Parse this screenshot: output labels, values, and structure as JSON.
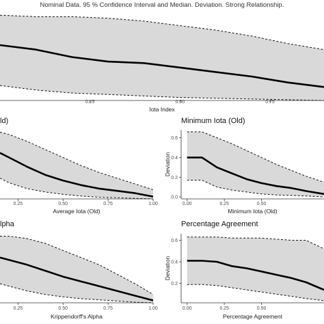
{
  "title": "Nominal Data. 95 % Confidence Interval and Median. Deviation. Strong Relationship.",
  "chart_data": [
    {
      "id": "iota-index",
      "type": "area",
      "title": "",
      "xlabel": "Iota Index",
      "ylabel": "",
      "xlim": [
        0,
        0.9
      ],
      "ylim": [
        0,
        0.58
      ],
      "xticks": [
        0.25,
        0.5,
        0.75
      ],
      "xticklabels": [
        "0.25",
        "0.50",
        "0.75"
      ],
      "yticks": [],
      "yticklabels": [],
      "x": [
        0,
        0.1,
        0.2,
        0.3,
        0.4,
        0.5,
        0.6,
        0.7,
        0.8,
        0.9
      ],
      "median": [
        0.37,
        0.34,
        0.29,
        0.26,
        0.25,
        0.22,
        0.19,
        0.16,
        0.12,
        0.09
      ],
      "upper": [
        0.57,
        0.56,
        0.56,
        0.55,
        0.53,
        0.5,
        0.47,
        0.43,
        0.38,
        0.34
      ],
      "lower": [
        0.1,
        0.07,
        0.05,
        0.04,
        0.03,
        0.02,
        0.015,
        0.01,
        0.005,
        0.0
      ]
    },
    {
      "id": "average-iota-old",
      "type": "area",
      "title": "ld)",
      "xlabel": "Average Iota (Old)",
      "ylabel": "",
      "xlim": [
        0.15,
        1.0
      ],
      "ylim": [
        0,
        0.6
      ],
      "xticks": [
        0.25,
        0.5,
        0.75,
        1.0
      ],
      "xticklabels": [
        "0.25",
        "0.50",
        "0.75",
        "1.00"
      ],
      "yticks": [],
      "yticklabels": [],
      "x": [
        0.15,
        0.2,
        0.3,
        0.4,
        0.5,
        0.6,
        0.7,
        0.8,
        0.9,
        1.0
      ],
      "median": [
        0.4,
        0.36,
        0.28,
        0.21,
        0.16,
        0.12,
        0.09,
        0.07,
        0.05,
        0.02
      ],
      "upper": [
        0.58,
        0.56,
        0.5,
        0.43,
        0.36,
        0.29,
        0.23,
        0.18,
        0.13,
        0.08
      ],
      "lower": [
        0.18,
        0.14,
        0.09,
        0.06,
        0.04,
        0.025,
        0.015,
        0.01,
        0.005,
        0.0
      ]
    },
    {
      "id": "minimum-iota-old",
      "type": "area",
      "title": "Minimum Iota (Old)",
      "xlabel": "Minimum Iota (Old)",
      "ylabel": "Deviation",
      "xlim": [
        -0.04,
        0.92
      ],
      "ylim": [
        -0.02,
        0.68
      ],
      "xticks": [
        0.0,
        0.25,
        0.5
      ],
      "xticklabels": [
        "0.00",
        "0.25",
        "0.50"
      ],
      "yticks": [
        0.0,
        0.2,
        0.4,
        0.6
      ],
      "yticklabels": [
        "0.0",
        "0.2",
        "0.4",
        "0.6"
      ],
      "x": [
        0.0,
        0.1,
        0.2,
        0.3,
        0.4,
        0.5,
        0.6,
        0.7,
        0.8,
        0.92
      ],
      "median": [
        0.4,
        0.4,
        0.3,
        0.24,
        0.18,
        0.14,
        0.11,
        0.09,
        0.06,
        0.03
      ],
      "upper": [
        0.66,
        0.66,
        0.6,
        0.54,
        0.47,
        0.4,
        0.33,
        0.27,
        0.21,
        0.15
      ],
      "lower": [
        0.17,
        0.17,
        0.1,
        0.07,
        0.05,
        0.03,
        0.02,
        0.015,
        0.01,
        0.0
      ]
    },
    {
      "id": "krippendorffs-alpha",
      "type": "area",
      "title": "lpha",
      "xlabel": "Krippendorff's Alpha",
      "ylabel": "",
      "xlim": [
        0.15,
        1.0
      ],
      "ylim": [
        0,
        0.58
      ],
      "xticks": [
        0.25,
        0.5,
        0.75,
        1.0
      ],
      "xticklabels": [
        "0.25",
        "0.50",
        "0.75",
        "1.00"
      ],
      "yticks": [],
      "yticklabels": [],
      "x": [
        0.15,
        0.2,
        0.3,
        0.4,
        0.5,
        0.6,
        0.7,
        0.8,
        0.9,
        1.0
      ],
      "median": [
        0.38,
        0.36,
        0.32,
        0.27,
        0.22,
        0.18,
        0.14,
        0.1,
        0.06,
        0.02
      ],
      "upper": [
        0.56,
        0.56,
        0.54,
        0.5,
        0.44,
        0.38,
        0.32,
        0.24,
        0.16,
        0.07
      ],
      "lower": [
        0.16,
        0.14,
        0.1,
        0.07,
        0.05,
        0.035,
        0.025,
        0.015,
        0.005,
        0.0
      ]
    },
    {
      "id": "percentage-agreement",
      "type": "area",
      "title": "Percentage Agreement",
      "xlabel": "Percentage Agreement",
      "ylabel": "Deviation",
      "xlim": [
        -0.04,
        0.92
      ],
      "ylim": [
        0.02,
        0.66
      ],
      "xticks": [
        0.0,
        0.25,
        0.5
      ],
      "xticklabels": [
        "0.00",
        "0.25",
        "0.50"
      ],
      "yticks": [
        0.2,
        0.4,
        0.6
      ],
      "yticklabels": [
        "0.2",
        "0.4",
        "0.6"
      ],
      "x": [
        0.0,
        0.1,
        0.2,
        0.3,
        0.4,
        0.5,
        0.6,
        0.7,
        0.8,
        0.92
      ],
      "median": [
        0.41,
        0.41,
        0.4,
        0.36,
        0.34,
        0.31,
        0.28,
        0.25,
        0.21,
        0.14
      ],
      "upper": [
        0.63,
        0.63,
        0.63,
        0.62,
        0.62,
        0.62,
        0.61,
        0.6,
        0.6,
        0.52
      ],
      "lower": [
        0.19,
        0.19,
        0.18,
        0.16,
        0.14,
        0.12,
        0.1,
        0.08,
        0.06,
        0.04
      ]
    }
  ]
}
